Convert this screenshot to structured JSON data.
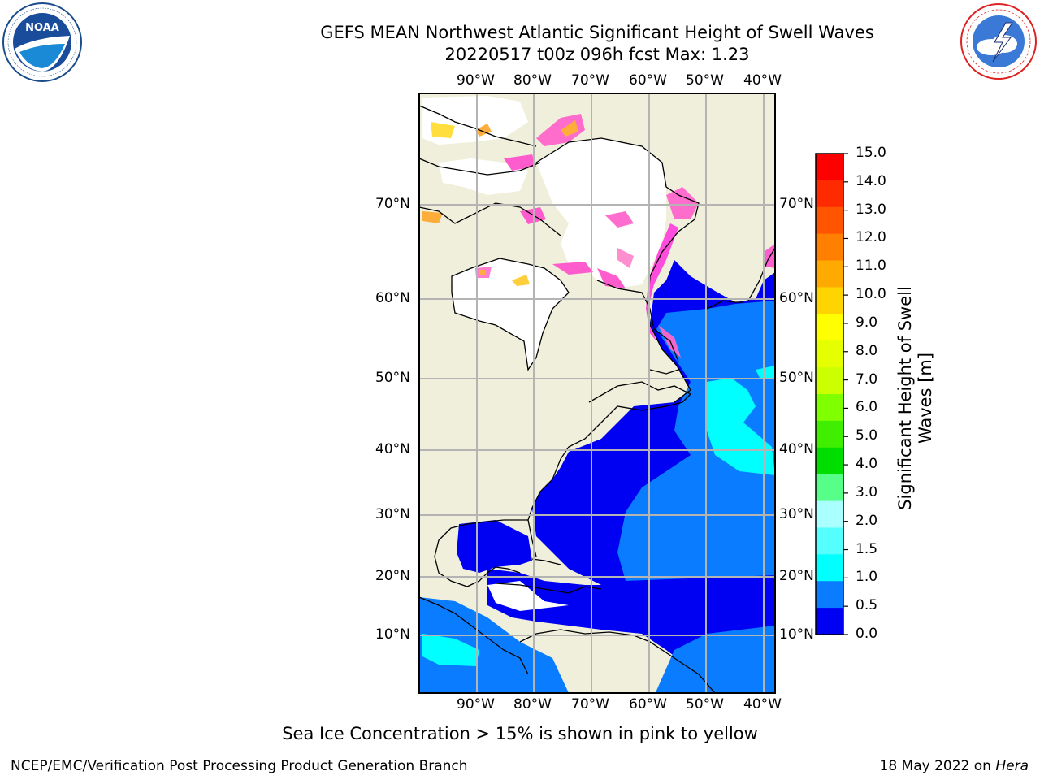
{
  "header": {
    "title_line1": "GEFS MEAN Northwest Atlantic Significant Height of Swell Waves",
    "title_line2": "20220517 t00z 096h fcst   Max: 1.23"
  },
  "logos": {
    "left": {
      "name": "NOAA",
      "ring_text": "NATIONAL OCEANIC AND ATMOSPHERIC ADMINISTRATION · U.S. DEPARTMENT OF COMMERCE"
    },
    "right": {
      "ring_text": "NATIONAL WEATHER SERVICE"
    }
  },
  "map": {
    "lon_labels_top": [
      "90°W",
      "80°W",
      "70°W",
      "60°W",
      "50°W",
      "40°W"
    ],
    "lon_labels_bottom": [
      "90°W",
      "80°W",
      "70°W",
      "60°W",
      "50°W",
      "40°W"
    ],
    "lat_labels_left": [
      "70°N",
      "60°N",
      "50°N",
      "40°N",
      "30°N",
      "20°N",
      "10°N"
    ],
    "lat_labels_right": [
      "70°N",
      "60°N",
      "50°N",
      "40°N",
      "30°N",
      "20°N",
      "10°N"
    ],
    "colors": {
      "land": "#efefdc",
      "ocean_low": "#0000f2",
      "ocean_mid": "#0a7cff",
      "ocean_high": "#00ffff",
      "grid": "#b4b4b4"
    }
  },
  "colorbar": {
    "label_line1": "Significant Height of Swell",
    "label_line2": "Waves [m]",
    "ticks": [
      "15.0",
      "14.0",
      "13.0",
      "12.0",
      "11.0",
      "10.0",
      "9.0",
      "8.0",
      "7.0",
      "6.0",
      "5.0",
      "4.0",
      "3.0",
      "2.0",
      "1.5",
      "1.0",
      "0.5",
      "0.0"
    ],
    "colors_top_to_bottom": [
      "#ff0000",
      "#ff2a00",
      "#ff5500",
      "#ff8000",
      "#ffaa00",
      "#ffd400",
      "#ffff00",
      "#e6ff00",
      "#ccff00",
      "#80ff00",
      "#40ee00",
      "#00dd00",
      "#55ff88",
      "#aaffff",
      "#55ffff",
      "#00ffff",
      "#0a7cff",
      "#0000f2"
    ]
  },
  "note": "Sea Ice Concentration > 15% is shown in pink to yellow",
  "footer": {
    "left": "NCEP/EMC/Verification Post Processing Product Generation Branch",
    "right_date": "18 May 2022 on ",
    "right_host": "Hera"
  }
}
